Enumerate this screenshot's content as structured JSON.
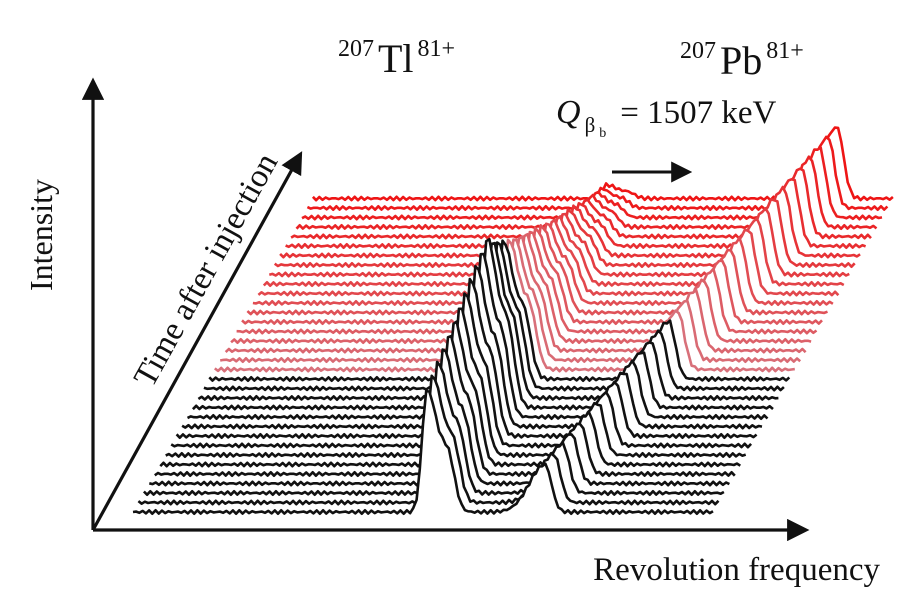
{
  "chart_data": {
    "type": "waterfall-spectra",
    "y_axis_label": "Intensity",
    "x_axis_label": "Revolution frequency",
    "depth_axis_label": "Time after injection",
    "peak_labels": {
      "parent": {
        "mass": "207",
        "element": "Tl",
        "charge": "81+"
      },
      "daughter": {
        "mass": "207",
        "element": "Pb",
        "charge": "81+"
      }
    },
    "annotation": {
      "symbol": "Q",
      "subscript": "β",
      "sub_subscript": "b",
      "text": "= 1507 keV"
    },
    "series_count": 34,
    "color_transition_index": 15,
    "colors": {
      "early": "#111111",
      "late_start": "#d8707a",
      "late_end": "#ee1515",
      "axis": "#111111"
    },
    "parent_peak_height_early": 0.72,
    "parent_peak_height_late": 1.0,
    "daughter_peak_height_early": 0.28,
    "daughter_peak_height_late": 0.42,
    "parent_peak_height_end": 0.08
  }
}
